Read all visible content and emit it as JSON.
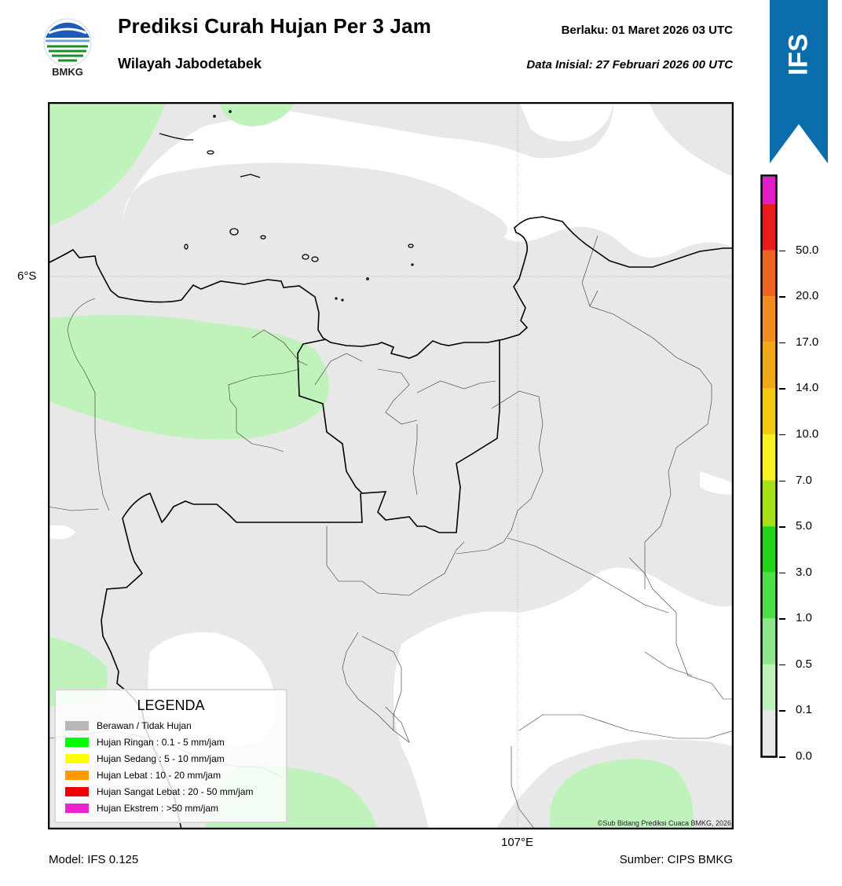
{
  "header": {
    "logo_text": "BMKG",
    "title": "Prediksi Curah Hujan Per 3 Jam",
    "subtitle": "Wilayah Jabodetabek",
    "valid_time": "Berlaku:  01 Maret 2026 03 UTC",
    "initial_time": "Data Inisial:  27 Februari 2026 00 UTC",
    "model_badge": "IFS"
  },
  "map": {
    "lat_label": "6°S",
    "lon_label": "107°E",
    "copyright": "©Sub Bidang Prediksi Cuaca BMKG, 2026"
  },
  "legend": {
    "title": "LEGENDA",
    "items": [
      {
        "label": "Berawan / Tidak Hujan",
        "color": "#b8b8b8"
      },
      {
        "label": "Hujan Ringan : 0.1 - 5 mm/jam",
        "color": "#00ff00"
      },
      {
        "label": "Hujan Sedang : 5 - 10 mm/jam",
        "color": "#ffff00"
      },
      {
        "label": "Hujan Lebat : 10 - 20 mm/jam",
        "color": "#ff9900"
      },
      {
        "label": "Hujan Sangat Lebat : 20 - 50 mm/jam",
        "color": "#ee0000"
      },
      {
        "label": "Hujan Ekstrem : >50 mm/jam",
        "color": "#ee22cc"
      }
    ]
  },
  "colorbar": {
    "ticks": [
      "0.0",
      "0.1",
      "0.5",
      "1.0",
      "3.0",
      "5.0",
      "7.0",
      "10.0",
      "14.0",
      "17.0",
      "20.0",
      "50.0"
    ],
    "colors": [
      "#e8e8e8",
      "#c0f2bc",
      "#8ce88a",
      "#4ce046",
      "#20d418",
      "#a8e018",
      "#f8f020",
      "#f4c810",
      "#f0a818",
      "#f08c20",
      "#ec6420",
      "#e81c1c",
      "#e41cc8"
    ]
  },
  "footer": {
    "model": "Model: IFS 0.125",
    "source": "Sumber: CIPS BMKG"
  }
}
